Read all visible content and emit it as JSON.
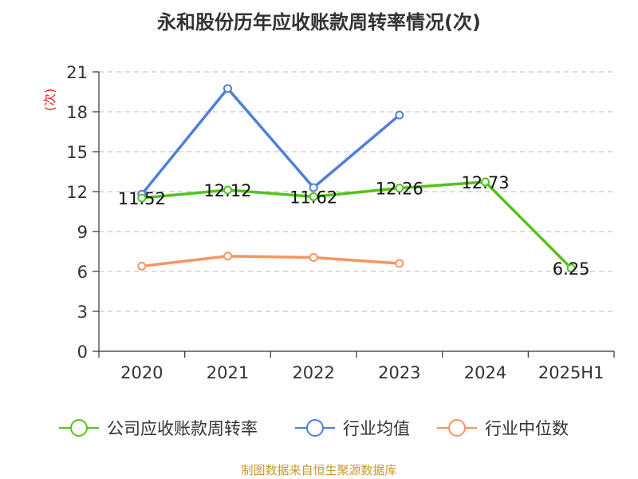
{
  "chart_data": {
    "type": "line",
    "title": "永和股份历年应收账款周转率情况(次)",
    "ylabel": "(次)",
    "xlabel": "",
    "categories": [
      "2020",
      "2021",
      "2022",
      "2023",
      "2024",
      "2025H1"
    ],
    "ylim": [
      0,
      21
    ],
    "yticks": [
      0,
      3,
      6,
      9,
      12,
      15,
      18,
      21
    ],
    "grid": true,
    "legend_position": "bottom",
    "series": [
      {
        "name": "公司应收账款周转率",
        "color": "#52c41a",
        "values": [
          11.52,
          12.12,
          11.62,
          12.26,
          12.73,
          6.25
        ],
        "data_labels": [
          "11.52",
          "12.12",
          "11.62",
          "12.26",
          "12.73",
          "6.25"
        ]
      },
      {
        "name": "行业均值",
        "color": "#4f7fdb",
        "values": [
          11.8,
          19.75,
          12.3,
          17.75,
          null,
          null
        ]
      },
      {
        "name": "行业中位数",
        "color": "#f59563",
        "values": [
          6.4,
          7.15,
          7.05,
          6.6,
          null,
          null
        ]
      }
    ]
  },
  "source": "制图数据来自恒生聚源数据库"
}
